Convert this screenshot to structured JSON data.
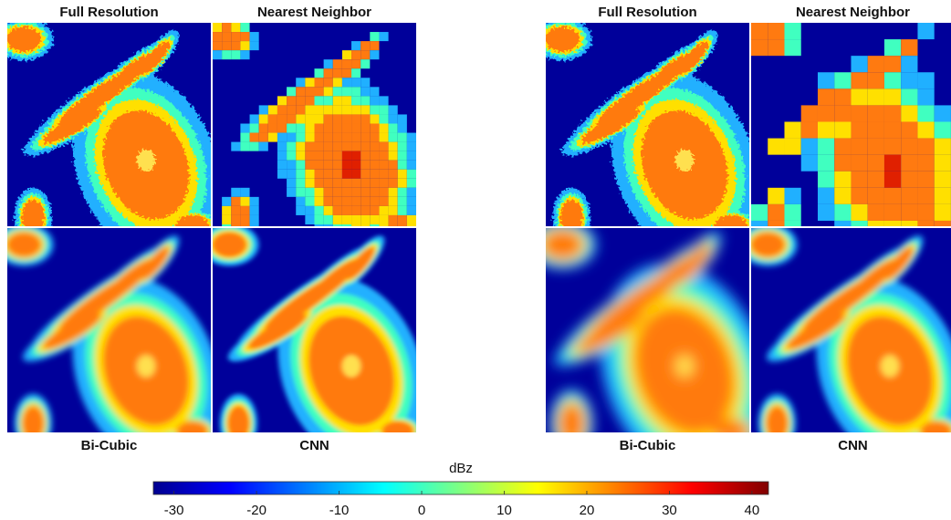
{
  "panels_left": {
    "top": [
      "Full Resolution",
      "Nearest Neighbor"
    ],
    "bottom": [
      "Bi-Cubic",
      "CNN"
    ]
  },
  "panels_right": {
    "top": [
      "Full Resolution",
      "Nearest Neighbor"
    ],
    "bottom": [
      "Bi-Cubic",
      "CNN"
    ]
  },
  "colorbar": {
    "label": "dBz",
    "lim": [
      -32.5,
      42
    ],
    "ticks": [
      -30,
      -20,
      -10,
      0,
      10,
      20,
      30,
      40
    ]
  }
}
